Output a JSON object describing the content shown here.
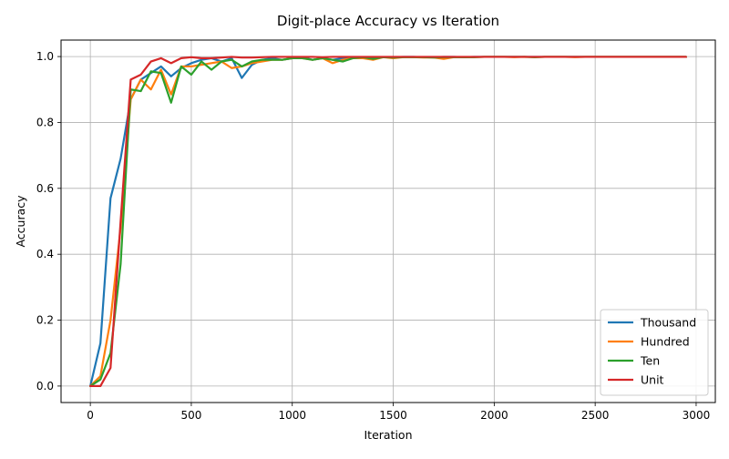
{
  "chart_data": {
    "type": "line",
    "title": "Digit-place Accuracy vs Iteration",
    "xlabel": "Iteration",
    "ylabel": "Accuracy",
    "xlim": [
      -145,
      3095
    ],
    "ylim": [
      -0.05,
      1.05
    ],
    "x_ticks": [
      0,
      500,
      1000,
      1500,
      2000,
      2500,
      3000
    ],
    "y_ticks": [
      0.0,
      0.2,
      0.4,
      0.6,
      0.8,
      1.0
    ],
    "x_tick_labels": [
      "0",
      "500",
      "1000",
      "1500",
      "2000",
      "2500",
      "3000"
    ],
    "y_tick_labels": [
      "0.0",
      "0.2",
      "0.4",
      "0.6",
      "0.8",
      "1.0"
    ],
    "grid": true,
    "legend_position": "lower-right",
    "x": [
      0,
      50,
      100,
      150,
      200,
      250,
      300,
      350,
      400,
      450,
      500,
      550,
      600,
      650,
      700,
      750,
      800,
      850,
      900,
      950,
      1000,
      1050,
      1100,
      1150,
      1200,
      1250,
      1300,
      1350,
      1400,
      1450,
      1500,
      1550,
      1600,
      1650,
      1700,
      1750,
      1800,
      1850,
      1900,
      1950,
      2000,
      2050,
      2100,
      2150,
      2200,
      2250,
      2300,
      2350,
      2400,
      2450,
      2500,
      2550,
      2600,
      2650,
      2700,
      2750,
      2800,
      2850,
      2900,
      2950
    ],
    "series": [
      {
        "name": "Thousand",
        "color": "#1f77b4",
        "values": [
          0.0,
          0.13,
          0.57,
          0.69,
          0.87,
          0.93,
          0.95,
          0.97,
          0.94,
          0.965,
          0.98,
          0.99,
          0.995,
          0.985,
          0.995,
          0.935,
          0.975,
          0.99,
          0.995,
          0.99,
          0.995,
          0.998,
          0.99,
          0.995,
          0.99,
          0.995,
          0.998,
          0.998,
          0.995,
          0.998,
          0.998,
          0.999,
          0.999,
          0.998,
          0.998,
          0.999,
          0.999,
          0.998,
          0.999,
          0.999,
          0.999,
          0.999,
          0.999,
          0.999,
          0.999,
          0.999,
          0.999,
          0.999,
          0.999,
          0.999,
          0.999,
          0.999,
          0.999,
          0.999,
          0.999,
          0.999,
          0.999,
          0.999,
          0.999,
          0.999
        ]
      },
      {
        "name": "Hundred",
        "color": "#ff7f0e",
        "values": [
          0.0,
          0.03,
          0.2,
          0.48,
          0.87,
          0.93,
          0.9,
          0.96,
          0.885,
          0.97,
          0.97,
          0.975,
          0.98,
          0.985,
          0.965,
          0.97,
          0.98,
          0.985,
          0.99,
          0.99,
          0.995,
          0.995,
          0.99,
          0.995,
          0.98,
          0.99,
          0.995,
          0.995,
          0.99,
          0.998,
          0.995,
          0.998,
          0.998,
          0.997,
          0.997,
          0.993,
          0.998,
          0.998,
          0.998,
          0.999,
          0.999,
          0.999,
          0.998,
          0.999,
          0.998,
          0.999,
          0.999,
          0.999,
          0.998,
          0.999,
          0.999,
          0.999,
          0.999,
          0.999,
          0.999,
          0.999,
          0.999,
          0.999,
          0.999,
          0.999
        ]
      },
      {
        "name": "Ten",
        "color": "#2ca02c",
        "values": [
          0.0,
          0.02,
          0.1,
          0.37,
          0.9,
          0.895,
          0.955,
          0.95,
          0.86,
          0.97,
          0.945,
          0.985,
          0.96,
          0.985,
          0.99,
          0.97,
          0.985,
          0.99,
          0.99,
          0.99,
          0.995,
          0.995,
          0.99,
          0.995,
          0.99,
          0.985,
          0.995,
          0.998,
          0.993,
          0.998,
          0.997,
          0.998,
          0.998,
          0.998,
          0.997,
          0.998,
          0.998,
          0.998,
          0.998,
          0.999,
          0.999,
          0.999,
          0.999,
          0.999,
          0.998,
          0.999,
          0.999,
          0.999,
          0.999,
          0.999,
          0.999,
          0.999,
          0.999,
          0.999,
          0.999,
          0.999,
          0.999,
          0.999,
          0.999,
          0.999
        ]
      },
      {
        "name": "Unit",
        "color": "#d62728",
        "values": [
          0.0,
          0.0,
          0.055,
          0.5,
          0.93,
          0.945,
          0.985,
          0.995,
          0.98,
          0.995,
          0.998,
          0.995,
          0.995,
          0.997,
          0.999,
          0.997,
          0.997,
          0.998,
          0.999,
          0.999,
          0.999,
          0.999,
          0.999,
          0.998,
          0.999,
          0.999,
          0.999,
          0.999,
          0.999,
          0.999,
          0.999,
          0.999,
          0.999,
          0.999,
          0.999,
          0.999,
          0.999,
          0.999,
          0.999,
          0.999,
          0.999,
          0.999,
          0.999,
          0.999,
          0.999,
          0.999,
          0.999,
          0.999,
          0.999,
          0.999,
          0.999,
          0.999,
          0.999,
          0.999,
          0.999,
          0.999,
          0.999,
          0.999,
          0.999,
          0.999
        ]
      }
    ]
  }
}
